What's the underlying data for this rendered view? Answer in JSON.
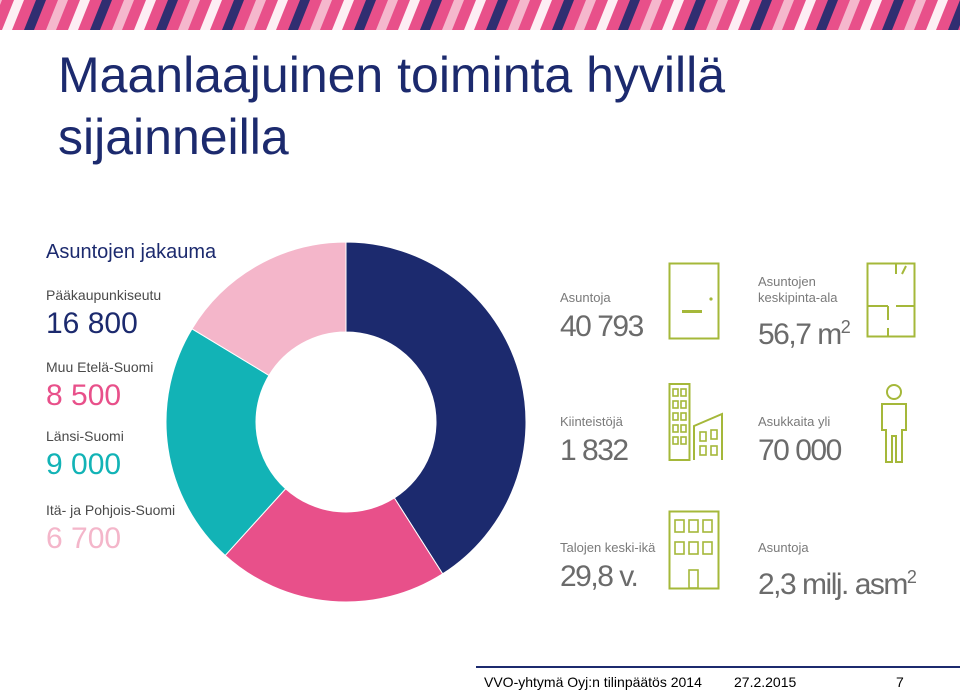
{
  "slide": {
    "title": "Maanlaajuinen toiminta hyvillä sijainneilla",
    "section_title": "Asuntojen jakauma"
  },
  "distribution": [
    {
      "label": "Pääkaupunkiseutu",
      "value": "16 800",
      "color": "#1c2a6e"
    },
    {
      "label": "Muu Etelä-Suomi",
      "value": "8 500",
      "color": "#e8508a"
    },
    {
      "label": "Länsi-Suomi",
      "value": "9 000",
      "color": "#12b3b6"
    },
    {
      "label": "Itä- ja Pohjois-Suomi",
      "value": "6 700",
      "color": "#f4b6ca"
    }
  ],
  "chart_data": {
    "type": "pie",
    "categories": [
      "Pääkaupunkiseutu",
      "Muu Etelä-Suomi",
      "Länsi-Suomi",
      "Itä- ja Pohjois-Suomi"
    ],
    "values": [
      16800,
      8500,
      9000,
      6700
    ],
    "colors": [
      "#1c2a6e",
      "#e8508a",
      "#12b3b6",
      "#f4b6ca"
    ],
    "style": "donut"
  },
  "stats": {
    "apartments": {
      "label": "Asuntoja",
      "value": "40 793"
    },
    "avg_area": {
      "label": "Asuntojen keskipinta-ala",
      "value": "56,7 m",
      "sup": "2"
    },
    "properties": {
      "label": "Kiinteistöjä",
      "value": "1 832"
    },
    "residents": {
      "label": "Asukkaita yli",
      "value": "70 000"
    },
    "avg_age": {
      "label": "Talojen keski-ikä",
      "value": "29,8 v."
    },
    "total_area": {
      "label": "Asuntoja",
      "value": "2,3 milj. asm",
      "sup": "2"
    }
  },
  "icons": [
    "apartment-icon",
    "floorplan-icon",
    "buildings-icon",
    "person-icon",
    "building-icon"
  ],
  "accent_color": "#a5b83a",
  "footer": {
    "company": "VVO-yhtymä Oyj:n tilinpäätös 2014",
    "date": "27.2.2015",
    "page": "7"
  }
}
